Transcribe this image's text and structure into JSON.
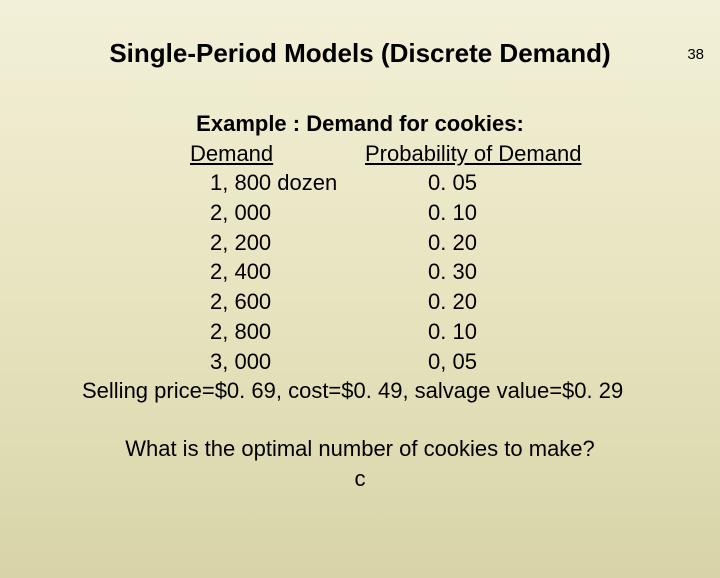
{
  "page_number": "38",
  "title": "Single-Period Models (Discrete Demand)",
  "example_heading": "Example : Demand for cookies:",
  "table": {
    "header_demand": "Demand",
    "header_probability": "Probability of Demand",
    "rows": [
      {
        "demand": "1, 800 dozen",
        "prob": "0. 05"
      },
      {
        "demand": "2, 000",
        "prob": "0. 10"
      },
      {
        "demand": "2, 200",
        "prob": "0. 20"
      },
      {
        "demand": "2, 400",
        "prob": "0. 30"
      },
      {
        "demand": "2, 600",
        "prob": "0. 20"
      },
      {
        "demand": "2, 800",
        "prob": "0. 10"
      },
      {
        "demand": "3, 000",
        "prob": "0, 05"
      }
    ]
  },
  "selling_line": "Selling price=$0. 69, cost=$0. 49, salvage value=$0. 29",
  "question": "What is the optimal number of cookies to make?",
  "c_label": "c",
  "colors": {
    "background_top": "#f2f0d8",
    "background_bottom": "#d8d4a8",
    "text": "#000000"
  },
  "typography": {
    "title_fontsize": 26,
    "body_fontsize": 22,
    "pagenum_fontsize": 15,
    "font_family": "Arial"
  }
}
